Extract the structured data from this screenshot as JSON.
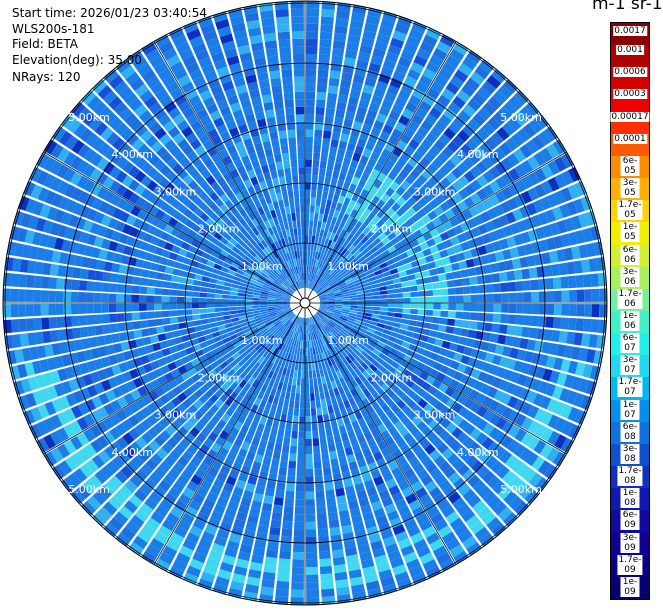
{
  "header": {
    "start_time": "Start time: 2026/01/23 03:40:54",
    "instrument": "WLS200s-181",
    "field": "Field: BETA",
    "elevation": "Elevation(deg): 35.00",
    "nrays": "NRays: 120"
  },
  "colorbar": {
    "title": "m-1 sr-1",
    "labels": [
      "0.0017",
      "0.001",
      "0.0006",
      "0.0003",
      "0.00017",
      "0.0001",
      "6e-05",
      "3e-05",
      "1.7e-05",
      "1e-05",
      "6e-06",
      "3e-06",
      "1.7e-06",
      "1e-06",
      "6e-07",
      "3e-07",
      "1.7e-07",
      "1e-07",
      "6e-08",
      "3e-08",
      "1.7e-08",
      "1e-08",
      "6e-09",
      "3e-09",
      "1.7e-09",
      "1e-09"
    ],
    "colors": [
      "#8b0000",
      "#b00000",
      "#d40000",
      "#f00000",
      "#ff3000",
      "#ff5a00",
      "#ff8c00",
      "#ffb000",
      "#ffd200",
      "#f0f000",
      "#d0f030",
      "#a8f060",
      "#70f0a0",
      "#40f0c8",
      "#20f0e8",
      "#20d8f0",
      "#00b8f8",
      "#0090f0",
      "#1070e0",
      "#1050d0",
      "#1030c0",
      "#1018b0",
      "#100aa0",
      "#100090",
      "#0a0080",
      "#060070"
    ]
  },
  "range_rings": {
    "labels": [
      "1.00km",
      "2.00km",
      "3.00km",
      "4.00km",
      "5.00km"
    ]
  },
  "palette": {
    "main": "#1a7de8",
    "alt": [
      "#1d6fe0",
      "#2a8ef0",
      "#30b0f0",
      "#40d8f0",
      "#1550d8",
      "#0a30c0"
    ]
  }
}
